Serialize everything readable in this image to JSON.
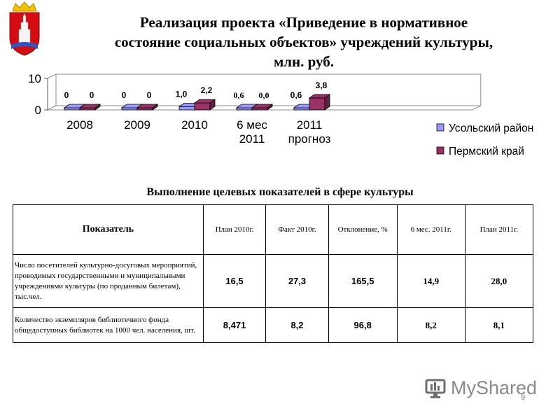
{
  "title_lines": [
    "Реализация проекта «Приведение в нормативное",
    "состояние социальных объектов» учреждений культуры,",
    "млн. руб."
  ],
  "chart_data": {
    "type": "bar",
    "categories": [
      [
        "2008"
      ],
      [
        "2009"
      ],
      [
        "2010"
      ],
      [
        "6 мес",
        "2011"
      ],
      [
        "2011",
        "прогноз"
      ]
    ],
    "series": [
      {
        "name": "Усольский район",
        "values": [
          0,
          0,
          1.0,
          0.6,
          0.6
        ],
        "color": "#9999ff"
      },
      {
        "name": "Пермский край",
        "values": [
          0,
          0,
          2.2,
          0.0,
          3.8
        ],
        "color": "#993366"
      }
    ],
    "data_labels": [
      [
        "0",
        "0",
        "1,0",
        "0,6",
        "0,6"
      ],
      [
        "0",
        "0",
        "2,2",
        "0,0",
        "3,8"
      ]
    ],
    "yticks": [
      "0",
      "10"
    ],
    "ylim": [
      0,
      10
    ],
    "legend_position": "right",
    "grid": false
  },
  "subtitle": "Выполнение целевых показателей в сфере культуры",
  "table": {
    "headers": [
      "Показатель",
      "План 2010г.",
      "Факт 2010г.",
      "Отклонение, %",
      "6 мес. 2011г.",
      "План 2011г."
    ],
    "rows": [
      {
        "label": "Число посетителей культурно-досуговых мероприятий, проводимых государственными и муниципальными учреждениями культуры (по проданным билетам), тыс.чел.",
        "values": [
          "16,5",
          "27,3",
          "165,5",
          "14,9",
          "28,0"
        ]
      },
      {
        "label": "Количество экземпляров библиотечного фонда общедоступных библиотек на 1000 чел. населения, шт.",
        "values": [
          "8,471",
          "8,2",
          "96,8",
          "8,2",
          "8,1"
        ]
      }
    ]
  },
  "watermark": "MyShared",
  "page_number": "9"
}
